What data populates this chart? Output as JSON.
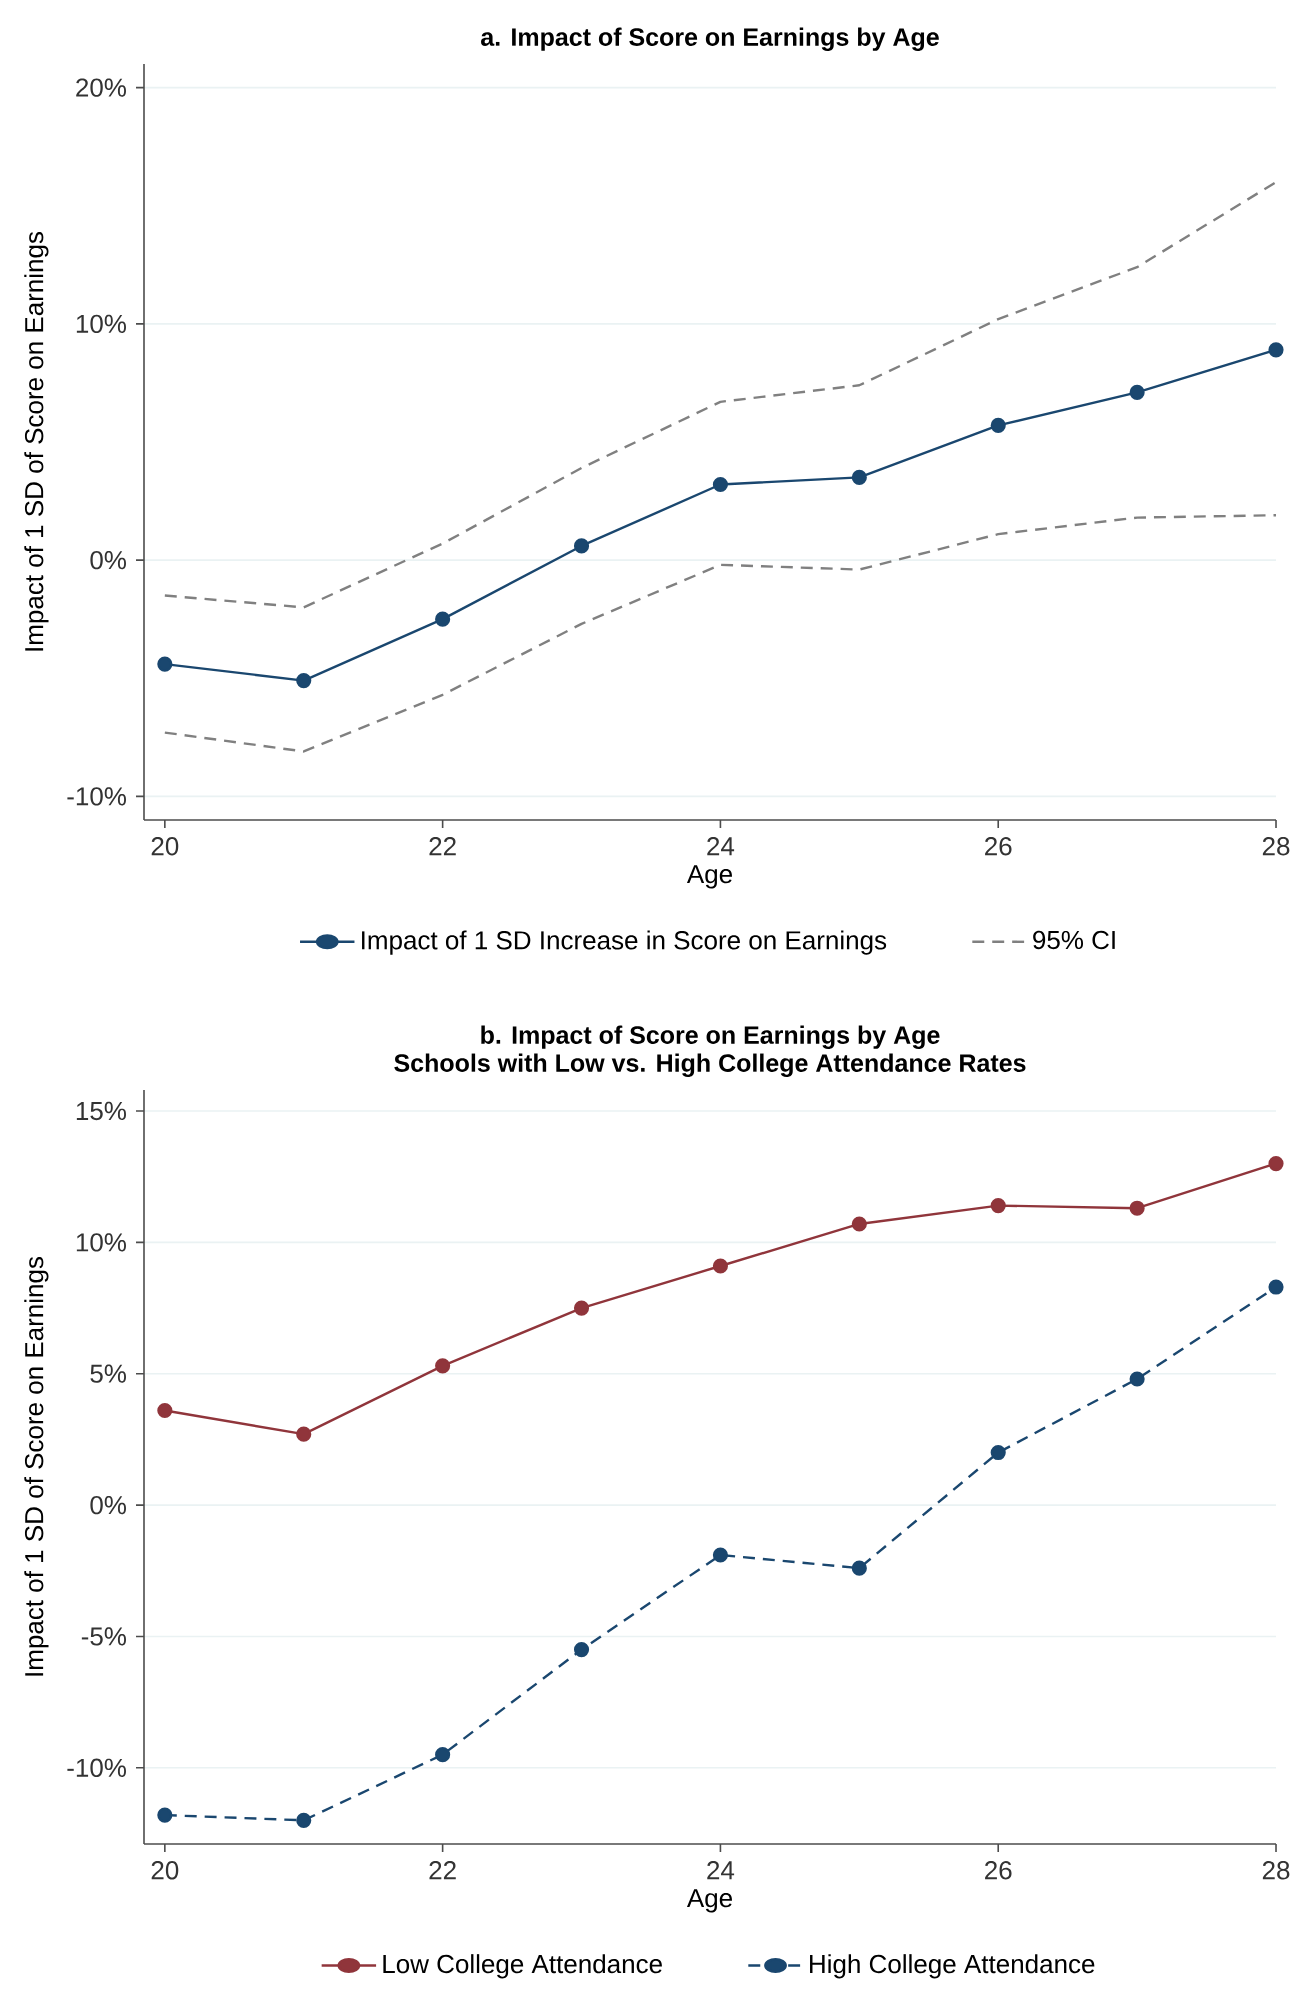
{
  "chart_data": [
    {
      "type": "line",
      "title": "a. Impact of Score on Earnings by Age",
      "xlabel": "Age",
      "ylabel": "Impact of 1 SD of Score on Earnings",
      "x": [
        20,
        21,
        22,
        23,
        24,
        25,
        26,
        27,
        28
      ],
      "xlim": [
        19.85,
        28
      ],
      "xticks": [
        20,
        22,
        24,
        26,
        28
      ],
      "ylim": [
        -11,
        21
      ],
      "yticks": [
        {
          "value": -10,
          "label": "-10%"
        },
        {
          "value": 0,
          "label": "0%"
        },
        {
          "value": 10,
          "label": "10%"
        },
        {
          "value": 20,
          "label": "20%"
        }
      ],
      "grid": "y",
      "legend": "bottom",
      "series": [
        {
          "name": "Impact of 1 SD Increase in Score on Earnings",
          "color": "#1a476f",
          "marker": "circle",
          "line_style": "solid",
          "values": [
            -4.4,
            -5.1,
            -2.5,
            0.6,
            3.2,
            3.5,
            5.7,
            7.1,
            8.9
          ]
        },
        {
          "name": "95% CI",
          "color": "#808080",
          "marker": "none",
          "line_style": "dashed",
          "values": [
            -1.5,
            -2.0,
            0.7,
            3.9,
            6.7,
            7.4,
            10.2,
            12.4,
            16.0
          ]
        },
        {
          "color": "#808080",
          "marker": "none",
          "line_style": "dashed",
          "values": [
            -7.3,
            -8.1,
            -5.7,
            -2.7,
            -0.2,
            -0.4,
            1.1,
            1.8,
            1.9
          ]
        }
      ]
    },
    {
      "type": "line",
      "title": "b. Impact of Score on Earnings by Age",
      "subtitle": "Schools with Low vs. High College Attendance Rates",
      "xlabel": "Age",
      "ylabel": "Impact of 1 SD of Score on Earnings",
      "x": [
        20,
        21,
        22,
        23,
        24,
        25,
        26,
        27,
        28
      ],
      "xlim": [
        19.85,
        28
      ],
      "xticks": [
        20,
        22,
        24,
        26,
        28
      ],
      "ylim": [
        -12.9,
        15.8
      ],
      "yticks": [
        {
          "value": -10,
          "label": "-10%"
        },
        {
          "value": -5,
          "label": "-5%"
        },
        {
          "value": 0,
          "label": "0%"
        },
        {
          "value": 5,
          "label": "5%"
        },
        {
          "value": 10,
          "label": "10%"
        },
        {
          "value": 15,
          "label": "15%"
        }
      ],
      "grid": "y",
      "legend": "bottom",
      "series": [
        {
          "name": "Low College Attendance",
          "color": "#90353b",
          "marker": "circle",
          "line_style": "solid",
          "values": [
            3.6,
            2.7,
            5.3,
            7.5,
            9.1,
            10.7,
            11.4,
            11.3,
            13.0
          ]
        },
        {
          "name": "High College Attendance",
          "color": "#1a476f",
          "marker": "circle",
          "line_style": "dashed",
          "values": [
            -11.8,
            -12.0,
            -9.5,
            -5.5,
            -1.9,
            -2.4,
            2.0,
            4.8,
            8.3
          ]
        }
      ]
    }
  ]
}
